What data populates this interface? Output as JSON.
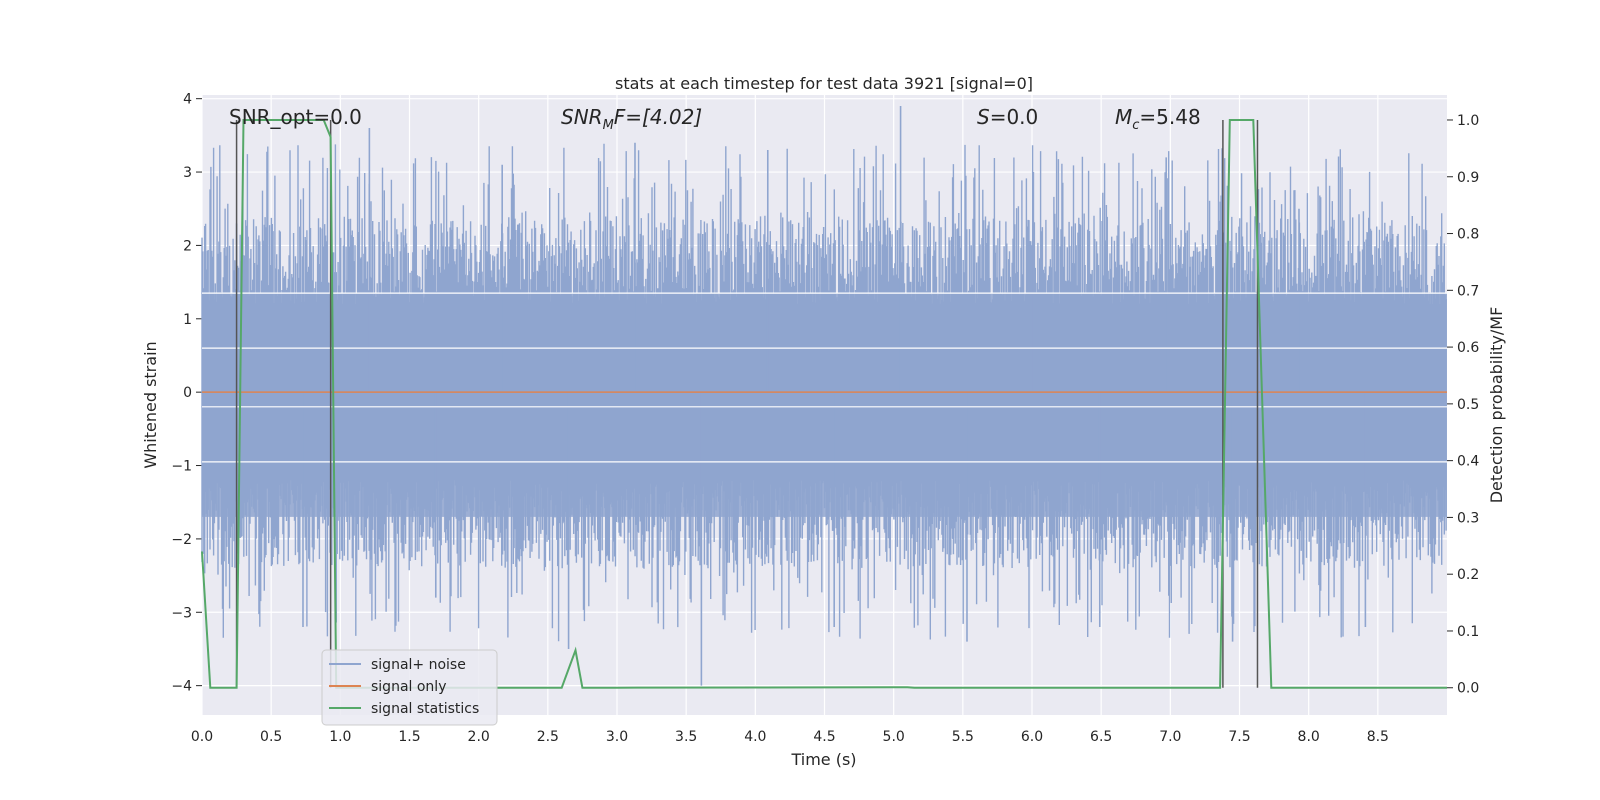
{
  "chart_data": {
    "type": "line",
    "title": "stats at each timestep for test data 3921 [signal=0]",
    "xlabel": "Time (s)",
    "ylabel": "Whitened strain",
    "y2label": "Detection probability/MF",
    "xlim": [
      0.0,
      9.0
    ],
    "ylim": [
      -4.4,
      4.05
    ],
    "y2lim": [
      -0.048,
      1.044
    ],
    "xticks": [
      "0.0",
      "0.5",
      "1.0",
      "1.5",
      "2.0",
      "2.5",
      "3.0",
      "3.5",
      "4.0",
      "4.5",
      "5.0",
      "5.5",
      "6.0",
      "6.5",
      "7.0",
      "7.5",
      "8.0",
      "8.5"
    ],
    "yticks": [
      "4",
      "3",
      "2",
      "1",
      "0",
      "−1",
      "−2",
      "−3",
      "−4"
    ],
    "y2ticks": [
      "1.0",
      "0.9",
      "0.8",
      "0.7",
      "0.6",
      "0.5",
      "0.4",
      "0.3",
      "0.2",
      "0.1",
      "0.0"
    ],
    "annotations": {
      "snr_opt": "SNR_opt=0.0",
      "snr_mf_sym": "SNR",
      "snr_mf_sub": "M",
      "snr_mf_rest": "F=[4.02]",
      "s_sym": "S",
      "s_rest": "=0.0",
      "mc_sym": "M",
      "mc_sub": "c",
      "mc_rest": "=5.48"
    },
    "legend": {
      "placement": "lower-left",
      "entries": [
        "signal+ noise",
        "signal only",
        "signal statistics"
      ]
    },
    "series": [
      {
        "name": "signal+ noise",
        "axis": "left",
        "kind": "noise band",
        "color": "#8fa5cf",
        "envelope_abs": 2.4,
        "peak_values": [
          2.3,
          -3.2,
          3.6,
          -2.8,
          3.1,
          -3.5,
          3.4,
          -4.0,
          3.3,
          -3.2,
          3.9,
          -3.4,
          3.0,
          -3.2,
          3.2,
          -3.4,
          2.5,
          -3.2
        ]
      },
      {
        "name": "signal only",
        "axis": "left",
        "color": "#dd8452",
        "x": [
          0.0,
          9.0
        ],
        "y": [
          0.0,
          0.0
        ]
      },
      {
        "name": "signal statistics",
        "axis": "right",
        "color": "#55a868",
        "x": [
          0.0,
          0.06,
          0.1,
          0.15,
          0.25,
          0.3,
          0.4,
          0.6,
          0.88,
          0.93,
          0.97,
          1.0,
          1.1,
          2.0,
          2.6,
          2.7,
          2.75,
          3.0,
          5.1,
          5.15,
          7.0,
          7.36,
          7.43,
          7.5,
          7.57,
          7.6,
          7.73,
          7.78,
          8.0,
          9.0
        ],
        "y": [
          0.24,
          0.0,
          0.0,
          0.0,
          0.0,
          1.0,
          1.0,
          1.0,
          1.0,
          0.97,
          0.0,
          0.0,
          0.0,
          0.0,
          0.0,
          0.066,
          0.0,
          0.0,
          0.001,
          0.0,
          0.0,
          0.0,
          1.0,
          1.0,
          1.0,
          1.0,
          0.0,
          0.0,
          0.0,
          0.0
        ]
      },
      {
        "name": "markers",
        "axis": "right",
        "color": "#555555",
        "vlines_x": [
          0.25,
          0.93,
          7.38,
          7.63
        ],
        "y_range": [
          0.0,
          1.0
        ]
      }
    ]
  }
}
